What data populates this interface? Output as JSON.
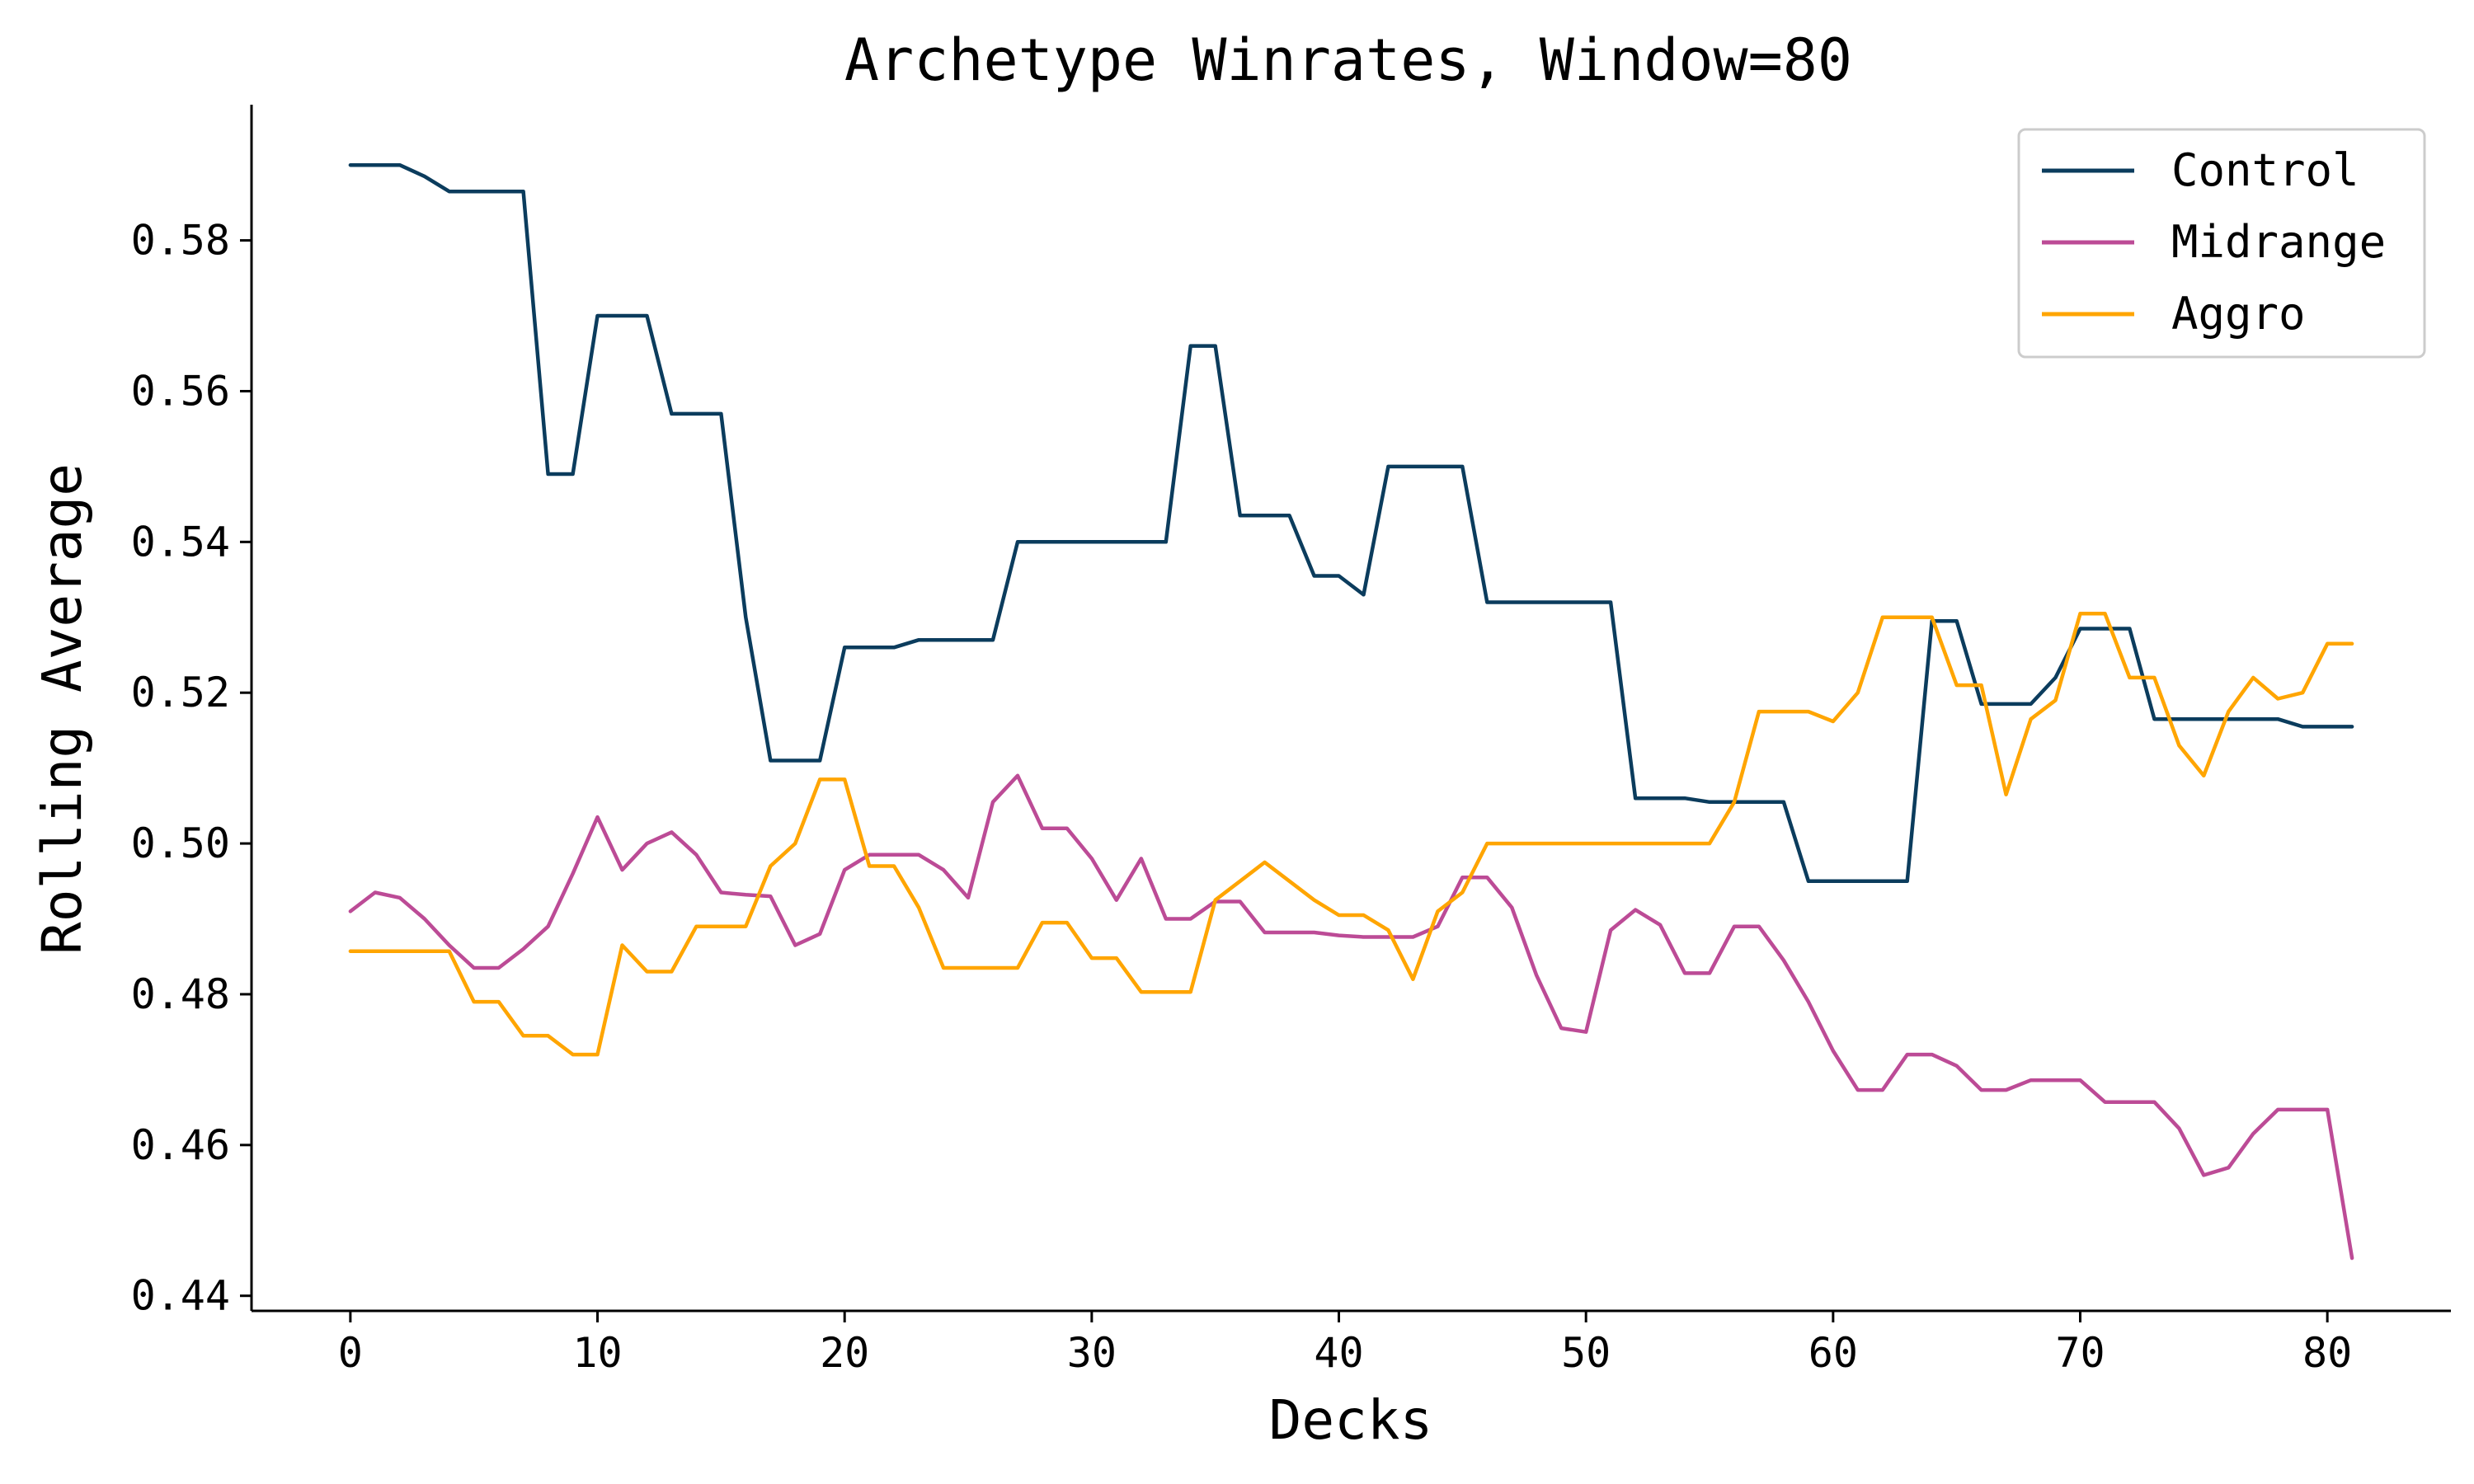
{
  "chart_data": {
    "type": "line",
    "title": "Archetype Winrates, Window=80",
    "xlabel": "Decks",
    "ylabel": "Rolling Average",
    "xlim": [
      -4,
      85
    ],
    "ylim": [
      0.438,
      0.598
    ],
    "xticks": [
      0,
      10,
      20,
      30,
      40,
      50,
      60,
      70,
      80
    ],
    "yticks": [
      0.44,
      0.46,
      0.48,
      0.5,
      0.52,
      0.54,
      0.56,
      0.58
    ],
    "ytick_labels": [
      "0.44",
      "0.46",
      "0.48",
      "0.50",
      "0.52",
      "0.54",
      "0.56",
      "0.58"
    ],
    "grid": false,
    "legend_position": "top-right",
    "x": [
      0,
      1,
      2,
      3,
      4,
      5,
      6,
      7,
      8,
      9,
      10,
      11,
      12,
      13,
      14,
      15,
      16,
      17,
      18,
      19,
      20,
      21,
      22,
      23,
      24,
      25,
      26,
      27,
      28,
      29,
      30,
      31,
      32,
      33,
      34,
      35,
      36,
      37,
      38,
      39,
      40,
      41,
      42,
      43,
      44,
      45,
      46,
      47,
      48,
      49,
      50,
      51,
      52,
      53,
      54,
      55,
      56,
      57,
      58,
      59,
      60,
      61,
      62,
      63,
      64,
      65,
      66,
      67,
      68,
      69,
      70,
      71,
      72,
      73,
      74,
      75,
      76,
      77,
      78,
      79,
      80,
      81
    ],
    "series": [
      {
        "name": "Control",
        "color": "#0b3c5d",
        "values": [
          0.59,
          0.59,
          0.59,
          0.5885,
          0.5865,
          0.5865,
          0.5865,
          0.5865,
          0.549,
          0.549,
          0.57,
          0.57,
          0.57,
          0.557,
          0.557,
          0.557,
          0.53,
          0.511,
          0.511,
          0.511,
          0.526,
          0.526,
          0.526,
          0.527,
          0.527,
          0.527,
          0.527,
          0.54,
          0.54,
          0.54,
          0.54,
          0.54,
          0.54,
          0.54,
          0.566,
          0.566,
          0.5435,
          0.5435,
          0.5435,
          0.5355,
          0.5355,
          0.533,
          0.55,
          0.55,
          0.55,
          0.55,
          0.532,
          0.532,
          0.532,
          0.532,
          0.532,
          0.532,
          0.506,
          0.506,
          0.506,
          0.5055,
          0.5055,
          0.5055,
          0.5055,
          0.495,
          0.495,
          0.495,
          0.495,
          0.495,
          0.5295,
          0.5295,
          0.5185,
          0.5185,
          0.5185,
          0.522,
          0.5285,
          0.5285,
          0.5285,
          0.5165,
          0.5165,
          0.5165,
          0.5165,
          0.5165,
          0.5165,
          0.5155,
          0.5155,
          0.5155
        ]
      },
      {
        "name": "Midrange",
        "color": "#bc4b96",
        "values": [
          0.491,
          0.4935,
          0.4928,
          0.49,
          0.4865,
          0.4835,
          0.4835,
          0.486,
          0.489,
          0.496,
          0.5035,
          0.4965,
          0.5,
          0.5015,
          0.4985,
          0.4935,
          0.4932,
          0.493,
          0.4865,
          0.488,
          0.4965,
          0.4985,
          0.4985,
          0.4985,
          0.4965,
          0.4928,
          0.5055,
          0.509,
          0.502,
          0.502,
          0.498,
          0.4925,
          0.498,
          0.49,
          0.49,
          0.4923,
          0.4923,
          0.4882,
          0.4882,
          0.4882,
          0.4878,
          0.4876,
          0.4876,
          0.4876,
          0.489,
          0.4955,
          0.4955,
          0.4915,
          0.4825,
          0.4755,
          0.475,
          0.4885,
          0.4912,
          0.4892,
          0.4828,
          0.4828,
          0.489,
          0.489,
          0.4845,
          0.479,
          0.4725,
          0.4673,
          0.4673,
          0.472,
          0.472,
          0.4705,
          0.4673,
          0.4673,
          0.4686,
          0.4686,
          0.4686,
          0.4657,
          0.4657,
          0.4657,
          0.4622,
          0.456,
          0.457,
          0.4615,
          0.4647,
          0.4647,
          0.4647,
          0.445
        ]
      },
      {
        "name": "Aggro",
        "color": "#ffa500",
        "values": [
          0.4857,
          0.4857,
          0.4857,
          0.4857,
          0.4857,
          0.479,
          0.479,
          0.4745,
          0.4745,
          0.472,
          0.472,
          0.4865,
          0.483,
          0.483,
          0.489,
          0.489,
          0.489,
          0.497,
          0.5,
          0.5085,
          0.5085,
          0.497,
          0.497,
          0.4915,
          0.4835,
          0.4835,
          0.4835,
          0.4835,
          0.4895,
          0.4895,
          0.4848,
          0.4848,
          0.4803,
          0.4803,
          0.4803,
          0.4925,
          0.495,
          0.4975,
          0.495,
          0.4925,
          0.4905,
          0.4905,
          0.4885,
          0.482,
          0.491,
          0.4935,
          0.5,
          0.5,
          0.5,
          0.5,
          0.5,
          0.5,
          0.5,
          0.5,
          0.5,
          0.5,
          0.5055,
          0.5175,
          0.5175,
          0.5175,
          0.5162,
          0.52,
          0.53,
          0.53,
          0.53,
          0.521,
          0.521,
          0.5065,
          0.5165,
          0.519,
          0.5305,
          0.5305,
          0.522,
          0.522,
          0.513,
          0.509,
          0.5175,
          0.522,
          0.5192,
          0.52,
          0.5265,
          0.5265
        ]
      }
    ]
  }
}
